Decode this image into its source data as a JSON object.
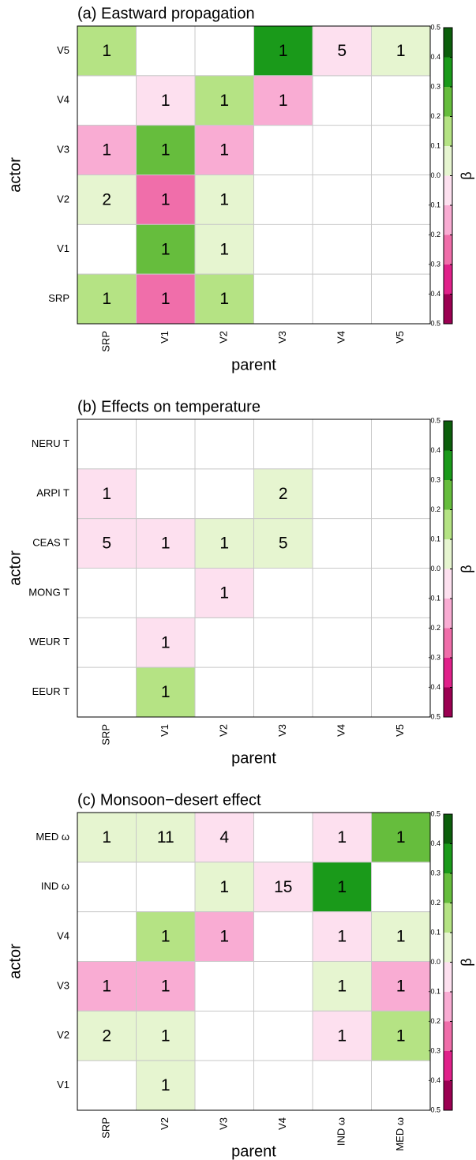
{
  "chart_data": [
    {
      "type": "heatmap",
      "title": "(a) Eastward propagation",
      "x_label": "parent",
      "y_label": "actor",
      "x_categories": [
        "SRP",
        "V1",
        "V2",
        "V3",
        "V4",
        "V5"
      ],
      "y_categories": [
        "V5",
        "V4",
        "V3",
        "V2",
        "V1",
        "SRP"
      ],
      "values": [
        [
          0.15,
          null,
          null,
          0.35,
          -0.05,
          0.05
        ],
        [
          null,
          -0.05,
          0.15,
          -0.15,
          null,
          null
        ],
        [
          -0.15,
          0.25,
          -0.15,
          null,
          null,
          null
        ],
        [
          0.05,
          -0.25,
          0.05,
          null,
          null,
          null
        ],
        [
          null,
          0.25,
          0.05,
          null,
          null,
          null
        ],
        [
          0.15,
          -0.25,
          0.15,
          null,
          null,
          null
        ]
      ],
      "cell_labels": [
        [
          1,
          null,
          null,
          1,
          5,
          1
        ],
        [
          null,
          1,
          1,
          1,
          null,
          null
        ],
        [
          1,
          1,
          1,
          null,
          null,
          null
        ],
        [
          2,
          1,
          1,
          null,
          null,
          null
        ],
        [
          null,
          1,
          1,
          null,
          null,
          null
        ],
        [
          1,
          1,
          1,
          null,
          null,
          null
        ]
      ],
      "colorbar": {
        "label": "β",
        "ticks": [
          -0.5,
          -0.4,
          -0.3,
          -0.2,
          -0.1,
          {
            "value": 0,
            "label": "0.0"
          },
          0.1,
          0.2,
          0.3,
          0.4,
          0.5
        ],
        "colors": [
          "#9b0052",
          "#e0218a",
          "#f06eaa",
          "#f9acd3",
          "#fde0ef",
          "#e6f5d0",
          "#b5e384",
          "#66bd3d",
          "#1a9a1a",
          "#0b5e0b"
        ]
      }
    },
    {
      "type": "heatmap",
      "title": "(b) Effects on temperature",
      "x_label": "parent",
      "y_label": "actor",
      "x_categories": [
        "SRP",
        "V1",
        "V2",
        "V3",
        "V4",
        "V5"
      ],
      "y_categories": [
        "NERU T",
        "ARPI T",
        "CEAS T",
        "MONG T",
        "WEUR T",
        "EEUR T"
      ],
      "values": [
        [
          null,
          null,
          null,
          null,
          null,
          null
        ],
        [
          -0.05,
          null,
          null,
          0.05,
          null,
          null
        ],
        [
          -0.05,
          -0.05,
          0.05,
          0.05,
          null,
          null
        ],
        [
          null,
          null,
          -0.05,
          null,
          null,
          null
        ],
        [
          null,
          -0.05,
          null,
          null,
          null,
          null
        ],
        [
          null,
          0.15,
          null,
          null,
          null,
          null
        ]
      ],
      "cell_labels": [
        [
          null,
          null,
          null,
          null,
          null,
          null
        ],
        [
          1,
          null,
          null,
          2,
          null,
          null
        ],
        [
          5,
          1,
          1,
          5,
          null,
          null
        ],
        [
          null,
          null,
          1,
          null,
          null,
          null
        ],
        [
          null,
          1,
          null,
          null,
          null,
          null
        ],
        [
          null,
          1,
          null,
          null,
          null,
          null
        ]
      ],
      "colorbar": {
        "label": "β",
        "ticks": [
          -0.5,
          -0.4,
          -0.3,
          -0.2,
          -0.1,
          {
            "value": 0,
            "label": "0.0"
          },
          0.1,
          0.2,
          0.3,
          0.4,
          0.5
        ],
        "colors": [
          "#9b0052",
          "#e0218a",
          "#f06eaa",
          "#f9acd3",
          "#fde0ef",
          "#e6f5d0",
          "#b5e384",
          "#66bd3d",
          "#1a9a1a",
          "#0b5e0b"
        ]
      }
    },
    {
      "type": "heatmap",
      "title": "(c) Monsoon−desert effect",
      "x_label": "parent",
      "y_label": "actor",
      "x_categories": [
        "SRP",
        "V2",
        "V3",
        "V4",
        "IND ω",
        "MED ω"
      ],
      "y_categories": [
        "MED ω",
        "IND ω",
        "V4",
        "V3",
        "V2",
        "V1"
      ],
      "values": [
        [
          0.05,
          0.05,
          -0.05,
          null,
          -0.05,
          0.25
        ],
        [
          null,
          null,
          0.05,
          -0.05,
          0.35,
          null
        ],
        [
          null,
          0.15,
          -0.15,
          null,
          -0.05,
          0.05
        ],
        [
          -0.15,
          -0.15,
          null,
          null,
          0.05,
          -0.15
        ],
        [
          0.05,
          0.05,
          null,
          null,
          -0.05,
          0.15
        ],
        [
          null,
          0.05,
          null,
          null,
          null,
          null
        ]
      ],
      "cell_labels": [
        [
          1,
          11,
          4,
          null,
          1,
          1
        ],
        [
          null,
          null,
          1,
          15,
          1,
          null
        ],
        [
          null,
          1,
          1,
          null,
          1,
          1
        ],
        [
          1,
          1,
          null,
          null,
          1,
          1
        ],
        [
          2,
          1,
          null,
          null,
          1,
          1
        ],
        [
          null,
          1,
          null,
          null,
          null,
          null
        ]
      ],
      "colorbar": {
        "label": "β",
        "ticks": [
          -0.5,
          -0.4,
          -0.3,
          -0.2,
          -0.1,
          {
            "value": 0,
            "label": "0.0"
          },
          0.1,
          0.2,
          0.3,
          0.4,
          0.5
        ],
        "colors": [
          "#9b0052",
          "#e0218a",
          "#f06eaa",
          "#f9acd3",
          "#fde0ef",
          "#e6f5d0",
          "#b5e384",
          "#66bd3d",
          "#1a9a1a",
          "#0b5e0b"
        ]
      }
    }
  ]
}
